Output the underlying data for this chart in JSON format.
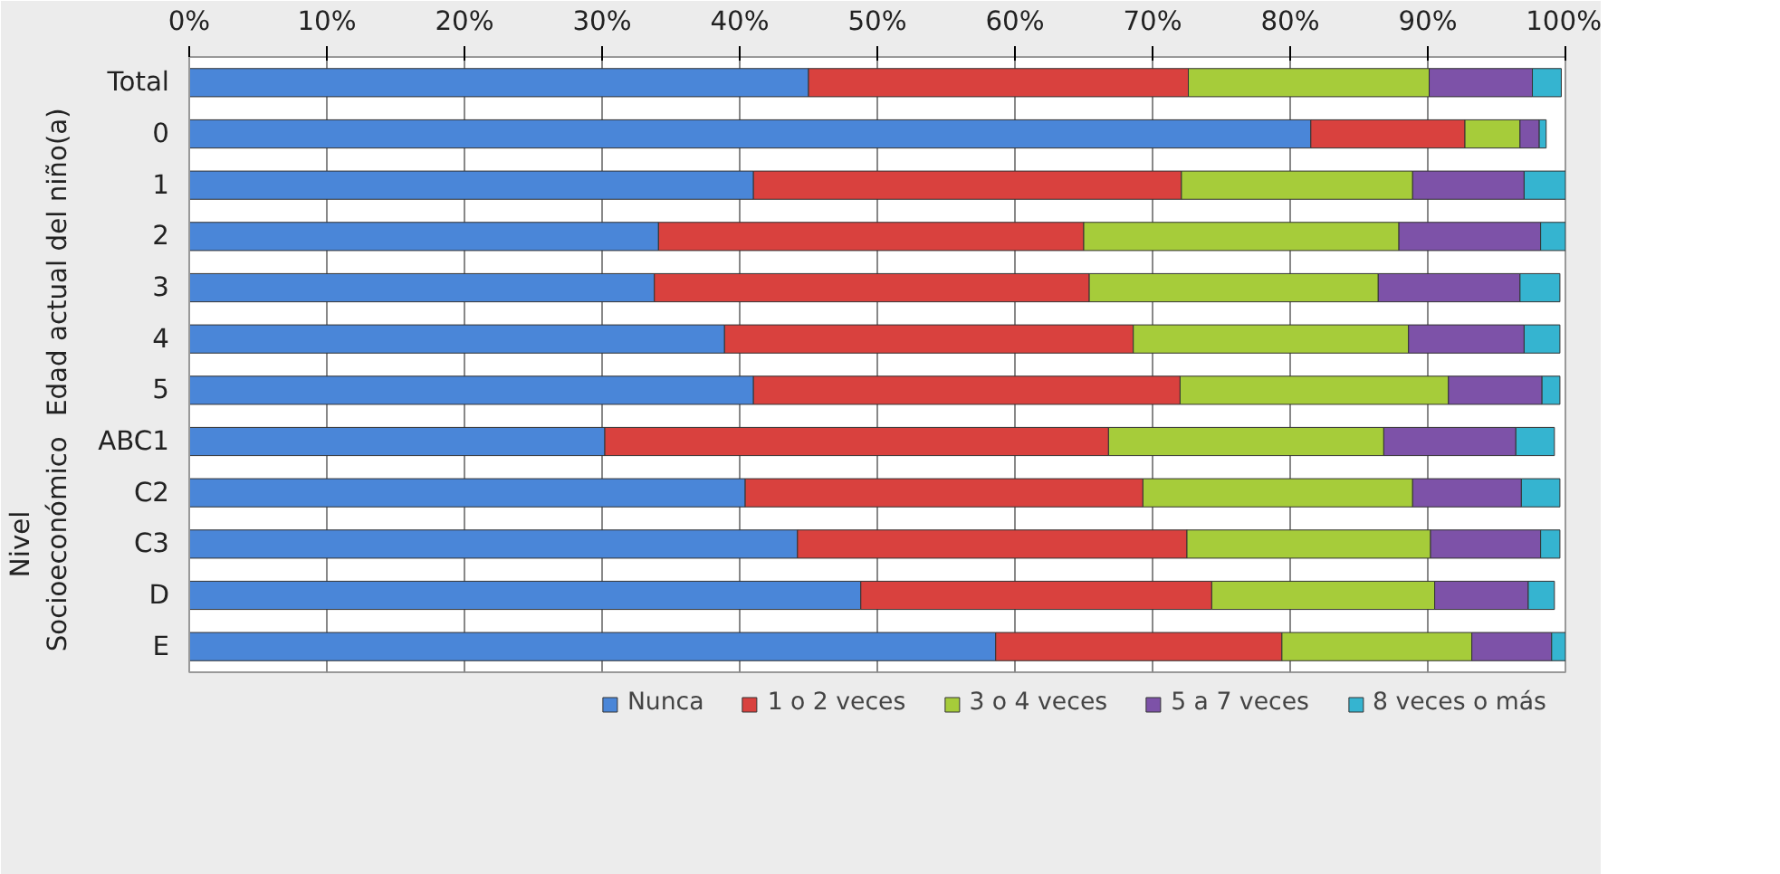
{
  "chart_data": {
    "type": "bar",
    "orientation": "horizontal",
    "stacked": true,
    "categories": [
      "Total",
      "0",
      "1",
      "2",
      "3",
      "4",
      "5",
      "ABC1",
      "C2",
      "C3",
      "D",
      "E"
    ],
    "series": [
      {
        "name": "Nunca",
        "color": "#4a86d8",
        "values": [
          45.0,
          81.5,
          41.0,
          34.1,
          33.8,
          38.9,
          41.0,
          30.2,
          40.4,
          44.2,
          48.8,
          58.6
        ]
      },
      {
        "name": "1 o 2 veces",
        "color": "#d9413e",
        "values": [
          27.6,
          11.2,
          31.1,
          30.9,
          31.6,
          29.7,
          31.0,
          36.6,
          28.9,
          28.3,
          25.5,
          20.8
        ]
      },
      {
        "name": "3 o 4 veces",
        "color": "#a6cc3a",
        "values": [
          17.5,
          4.0,
          16.8,
          22.9,
          21.0,
          20.0,
          19.5,
          20.0,
          19.6,
          17.7,
          16.2,
          13.8
        ]
      },
      {
        "name": "5 a 7 veces",
        "color": "#7d52a8",
        "values": [
          7.5,
          1.4,
          8.1,
          10.3,
          10.3,
          8.4,
          6.8,
          9.6,
          7.9,
          8.0,
          6.8,
          5.8
        ]
      },
      {
        "name": "8 veces o más",
        "color": "#35b4d0",
        "values": [
          2.1,
          0.5,
          3.0,
          1.8,
          2.9,
          2.6,
          1.3,
          2.8,
          2.8,
          1.4,
          1.9,
          1.0
        ]
      }
    ],
    "xlim": [
      0,
      100
    ],
    "xticks": [
      {
        "value": 0,
        "label": "0%"
      },
      {
        "value": 10,
        "label": "10%"
      },
      {
        "value": 20,
        "label": "20%"
      },
      {
        "value": 30,
        "label": "30%"
      },
      {
        "value": 40,
        "label": "40%"
      },
      {
        "value": 50,
        "label": "50%"
      },
      {
        "value": 60,
        "label": "60%"
      },
      {
        "value": 70,
        "label": "70%"
      },
      {
        "value": 80,
        "label": "80%"
      },
      {
        "value": 90,
        "label": "90%"
      },
      {
        "value": 100,
        "label": "100%"
      }
    ],
    "annotations": [
      "Edad actual del niño(a)",
      "Nivel\nSocioeconómico"
    ],
    "grid": "x",
    "legend": "bottom"
  }
}
